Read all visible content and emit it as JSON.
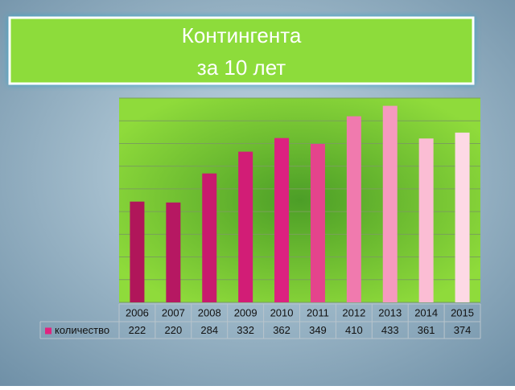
{
  "chart_data": {
    "type": "bar",
    "title": "Контингента",
    "subtitle": "за 10 лет",
    "categories": [
      "2006",
      "2007",
      "2008",
      "2009",
      "2010",
      "2011",
      "2012",
      "2013",
      "2014",
      "2015"
    ],
    "series": [
      {
        "name": "количество",
        "color": "#e0247f",
        "colors": [
          "#b0165a",
          "#b61862",
          "#c81b6e",
          "#d21d76",
          "#dc2180",
          "#e4448c",
          "#f07aae",
          "#f59abf",
          "#fbbdd4",
          "#fdd9e5"
        ],
        "values": [
          222,
          220,
          284,
          332,
          362,
          349,
          410,
          433,
          361,
          374
        ]
      }
    ],
    "ylim": [
      0,
      450
    ],
    "yticks": [
      0,
      50,
      100,
      150,
      200,
      250,
      300,
      350,
      400,
      450
    ],
    "grid": true,
    "data_table": true
  }
}
